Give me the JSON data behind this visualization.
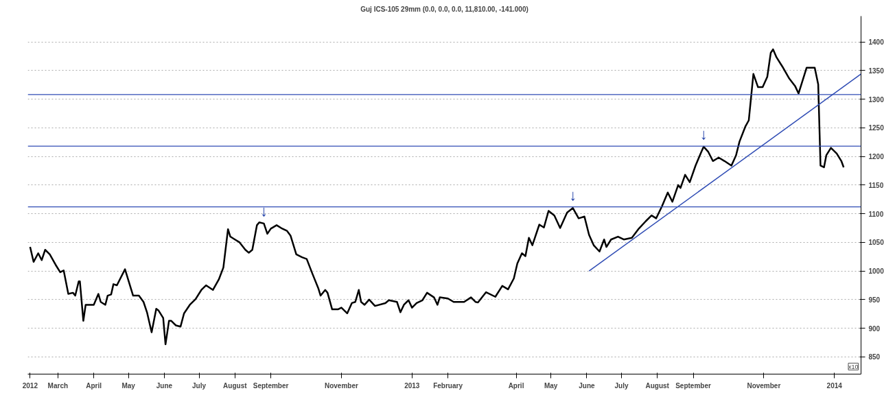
{
  "chart_data": {
    "type": "line",
    "title": "Guj ICS-105 29mm (0.0, 0.0, 0.0, 11,810.00, -141.000)",
    "x": [
      "2012-02-06",
      "2012-02-09",
      "2012-02-13",
      "2012-02-16",
      "2012-02-19",
      "2012-02-23",
      "2012-02-28",
      "2012-03-03",
      "2012-03-06",
      "2012-03-10",
      "2012-03-14",
      "2012-03-16",
      "2012-03-19",
      "2012-03-20",
      "2012-03-23",
      "2012-03-25",
      "2012-04-01",
      "2012-04-05",
      "2012-04-07",
      "2012-04-11",
      "2012-04-13",
      "2012-04-16",
      "2012-04-18",
      "2012-04-21",
      "2012-04-28",
      "2012-05-05",
      "2012-05-10",
      "2012-05-14",
      "2012-05-17",
      "2012-05-21",
      "2012-05-25",
      "2012-05-27",
      "2012-05-31",
      "2012-06-02",
      "2012-06-05",
      "2012-06-07",
      "2012-06-11",
      "2012-06-15",
      "2012-06-18",
      "2012-06-23",
      "2012-06-28",
      "2012-07-03",
      "2012-07-07",
      "2012-07-13",
      "2012-07-18",
      "2012-07-22",
      "2012-07-26",
      "2012-07-28",
      "2012-08-01",
      "2012-08-05",
      "2012-08-10",
      "2012-08-13",
      "2012-08-16",
      "2012-08-20",
      "2012-08-22",
      "2012-08-26",
      "2012-08-29",
      "2012-09-01",
      "2012-09-06",
      "2012-09-10",
      "2012-09-15",
      "2012-09-18",
      "2012-09-23",
      "2012-09-28",
      "2012-10-02",
      "2012-10-07",
      "2012-10-12",
      "2012-10-14",
      "2012-10-18",
      "2012-10-20",
      "2012-10-24",
      "2012-10-29",
      "2012-11-01",
      "2012-11-06",
      "2012-11-10",
      "2012-11-13",
      "2012-11-16",
      "2012-11-18",
      "2012-11-21",
      "2012-11-25",
      "2012-11-30",
      "2012-12-09",
      "2012-12-12",
      "2012-12-19",
      "2012-12-22",
      "2012-12-25",
      "2012-12-29",
      "2013-01-01",
      "2013-01-05",
      "2013-01-10",
      "2013-01-14",
      "2013-01-20",
      "2013-01-23",
      "2013-01-25",
      "2013-02-01",
      "2013-02-06",
      "2013-02-15",
      "2013-02-21",
      "2013-02-25",
      "2013-02-27",
      "2013-03-06",
      "2013-03-14",
      "2013-03-20",
      "2013-03-25",
      "2013-03-30",
      "2013-04-02",
      "2013-04-06",
      "2013-04-09",
      "2013-04-12",
      "2013-04-15",
      "2013-04-21",
      "2013-04-25",
      "2013-04-29",
      "2013-05-04",
      "2013-05-09",
      "2013-05-15",
      "2013-05-20",
      "2013-05-25",
      "2013-05-30",
      "2013-06-03",
      "2013-06-07",
      "2013-06-12",
      "2013-06-16",
      "2013-06-18",
      "2013-06-22",
      "2013-06-28",
      "2013-07-03",
      "2013-07-10",
      "2013-07-16",
      "2013-07-22",
      "2013-07-27",
      "2013-07-31",
      "2013-08-05",
      "2013-08-10",
      "2013-08-14",
      "2013-08-19",
      "2013-08-21",
      "2013-08-25",
      "2013-08-29",
      "2013-09-03",
      "2013-09-08",
      "2013-09-10",
      "2013-09-14",
      "2013-09-18",
      "2013-09-23",
      "2013-09-28",
      "2013-10-04",
      "2013-10-08",
      "2013-10-11",
      "2013-10-16",
      "2013-10-19",
      "2013-10-23",
      "2013-10-27",
      "2013-10-31",
      "2013-11-04",
      "2013-11-07",
      "2013-11-09",
      "2013-11-12",
      "2013-11-17",
      "2013-11-23",
      "2013-11-28",
      "2013-12-01",
      "2013-12-08",
      "2013-12-15",
      "2013-12-18",
      "2013-12-20",
      "2013-12-23",
      "2013-12-25",
      "2013-12-29",
      "2014-01-03",
      "2014-01-07",
      "2014-01-09"
    ],
    "series": [
      {
        "color": "#000000",
        "values": [
          1042,
          1016,
          1031,
          1019,
          1037,
          1029,
          1011,
          998,
          1001,
          960,
          962,
          957,
          982,
          982,
          913,
          941,
          941,
          960,
          946,
          941,
          957,
          959,
          977,
          975,
          1003,
          957,
          957,
          946,
          928,
          893,
          934,
          931,
          918,
          872,
          913,
          913,
          905,
          903,
          926,
          941,
          951,
          967,
          975,
          967,
          985,
          1006,
          1073,
          1060,
          1055,
          1050,
          1037,
          1032,
          1037,
          1080,
          1085,
          1083,
          1065,
          1074,
          1080,
          1075,
          1070,
          1062,
          1029,
          1024,
          1021,
          995,
          970,
          957,
          967,
          962,
          933,
          933,
          936,
          926,
          944,
          946,
          967,
          946,
          941,
          950,
          939,
          944,
          949,
          946,
          928,
          941,
          949,
          936,
          944,
          949,
          962,
          954,
          941,
          954,
          952,
          946,
          946,
          954,
          946,
          945,
          963,
          955,
          974,
          968,
          987,
          1013,
          1031,
          1026,
          1058,
          1045,
          1081,
          1076,
          1105,
          1097,
          1075,
          1102,
          1110,
          1092,
          1095,
          1063,
          1045,
          1034,
          1055,
          1042,
          1055,
          1060,
          1055,
          1058,
          1074,
          1087,
          1097,
          1092,
          1113,
          1137,
          1121,
          1150,
          1145,
          1168,
          1155,
          1184,
          1208,
          1217,
          1208,
          1192,
          1198,
          1192,
          1184,
          1202,
          1226,
          1252,
          1263,
          1344,
          1321,
          1321,
          1339,
          1381,
          1387,
          1373,
          1357,
          1336,
          1323,
          1310,
          1355,
          1355,
          1326,
          1184,
          1181,
          1202,
          1215,
          1205,
          1192,
          1181
        ]
      },
      {
        "type": "line",
        "color": "#2e4bb4",
        "x": [
          "2013-06-03",
          "2014-01-24"
        ],
        "values": [
          1000,
          1344
        ]
      }
    ],
    "ref_lines": [
      {
        "axis": "y",
        "value": 1308,
        "color": "#2e4bb4"
      },
      {
        "axis": "y",
        "value": 1218,
        "color": "#2e4bb4"
      },
      {
        "axis": "y",
        "value": 1112,
        "color": "#2e4bb4"
      }
    ],
    "annotations": [
      {
        "text": "↓",
        "x": "2012-08-26",
        "y": 1083
      },
      {
        "text": "↓",
        "x": "2013-05-20",
        "y": 1110
      },
      {
        "text": "↓",
        "x": "2013-09-10",
        "y": 1217
      },
      "x10"
    ],
    "xlim": [
      "2012-02-04",
      "2014-01-24"
    ],
    "xticks": [
      {
        "value": "2012-02-06",
        "label": "2012"
      },
      {
        "value": "2012-03-01",
        "label": "March"
      },
      {
        "value": "2012-04-01",
        "label": "April"
      },
      {
        "value": "2012-05-01",
        "label": "May"
      },
      {
        "value": "2012-06-01",
        "label": "June"
      },
      {
        "value": "2012-07-01",
        "label": "July"
      },
      {
        "value": "2012-08-01",
        "label": "August"
      },
      {
        "value": "2012-09-01",
        "label": "September"
      },
      {
        "value": "2012-11-01",
        "label": "November"
      },
      {
        "value": "2013-01-01",
        "label": "2013"
      },
      {
        "value": "2013-02-01",
        "label": "February"
      },
      {
        "value": "2013-04-01",
        "label": "April"
      },
      {
        "value": "2013-05-01",
        "label": "May"
      },
      {
        "value": "2013-06-01",
        "label": "June"
      },
      {
        "value": "2013-07-01",
        "label": "July"
      },
      {
        "value": "2013-08-01",
        "label": "August"
      },
      {
        "value": "2013-09-01",
        "label": "September"
      },
      {
        "value": "2013-11-01",
        "label": "November"
      },
      {
        "value": "2014-01-01",
        "label": "2014"
      }
    ],
    "ylim": [
      820,
      1445
    ],
    "yticks": [
      850,
      900,
      950,
      1000,
      1050,
      1100,
      1150,
      1200,
      1250,
      1300,
      1350,
      1400
    ],
    "grid": "y",
    "line_style": "solid"
  }
}
